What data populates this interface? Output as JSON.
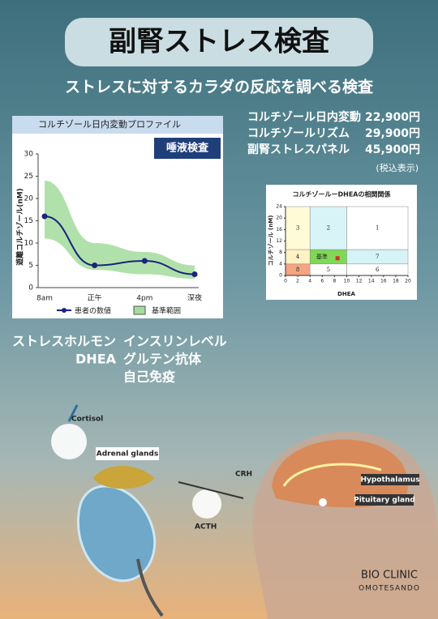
{
  "header": {
    "title": "副腎ストレス検査",
    "subtitle": "ストレスに対するカラダの反応を調べる検査"
  },
  "prices": {
    "items": [
      {
        "name": "コルチゾール日内変動",
        "price": "22,900円"
      },
      {
        "name": "コルチゾールリズム",
        "price": "29,900円"
      },
      {
        "name": "副腎ストレスパネル",
        "price": "45,900円"
      }
    ],
    "note": "(税込表示)"
  },
  "tests": {
    "left": [
      "ストレスホルモン",
      "DHEA"
    ],
    "right": [
      "インスリンレベル",
      "グルテン抗体",
      "自己免疫"
    ]
  },
  "diagram": {
    "cortisol": "Cortisol",
    "adrenal": "Adrenal glands",
    "crh": "CRH",
    "acth": "ACTH",
    "hypothalamus": "Hypothalamus",
    "pituitary": "Pituitary gland"
  },
  "logo": {
    "name": "BIO CLINIC",
    "location": "OMOTESANDO"
  },
  "chart_data": [
    {
      "type": "line",
      "title": "コルチゾール日内変動プロファイル",
      "badge": "唾液検査",
      "y_label": "遊離コルチゾール(nM)",
      "categories": [
        "8am",
        "正午",
        "4pm",
        "深夜"
      ],
      "ylim": [
        0,
        30
      ],
      "yticks": [
        0,
        5,
        10,
        15,
        20,
        25,
        30
      ],
      "series": [
        {
          "name": "患者の数値",
          "color": "#1a237e",
          "values": [
            16,
            5,
            6,
            3
          ]
        },
        {
          "name": "基準範囲",
          "color": "#a3dc9b",
          "values": [
            24,
            10,
            8,
            5
          ],
          "lower": [
            11,
            4,
            3,
            2
          ]
        }
      ]
    },
    {
      "type": "scatter",
      "title": "コルチゾールーDHEAの相関関係",
      "x_label": "DHEA",
      "y_label": "コルチゾール (nM)",
      "xlim": [
        0,
        20
      ],
      "xticks": [
        0,
        2,
        4,
        6,
        8,
        10,
        12,
        14,
        16,
        18,
        20
      ],
      "ylim": [
        0,
        24
      ],
      "yticks": [
        0,
        4,
        8,
        12,
        16,
        20,
        24
      ],
      "zones": [
        {
          "label": "3",
          "x": [
            0,
            4
          ],
          "y": [
            9,
            24
          ],
          "color": "#fffbd6"
        },
        {
          "label": "2",
          "x": [
            4,
            10
          ],
          "y": [
            9,
            24
          ],
          "color": "#d9f4f7"
        },
        {
          "label": "1",
          "x": [
            10,
            20
          ],
          "y": [
            9,
            24
          ],
          "color": "#ffffff"
        },
        {
          "label": "4",
          "x": [
            0,
            4
          ],
          "y": [
            4,
            9
          ],
          "color": "#fff3c4"
        },
        {
          "label": "基準",
          "x": [
            4,
            10
          ],
          "y": [
            4,
            9
          ],
          "color": "#7ed957"
        },
        {
          "label": "7",
          "x": [
            10,
            20
          ],
          "y": [
            4,
            9
          ],
          "color": "#d6f3f7"
        },
        {
          "label": "8",
          "x": [
            0,
            4
          ],
          "y": [
            0,
            4
          ],
          "color": "#f4a582"
        },
        {
          "label": "5",
          "x": [
            4,
            10
          ],
          "y": [
            0,
            4
          ],
          "color": "#ffffff"
        },
        {
          "label": "6",
          "x": [
            10,
            20
          ],
          "y": [
            0,
            4
          ],
          "color": "#ffffff"
        }
      ],
      "points": {
        "x": [
          8.5
        ],
        "y": [
          6
        ],
        "color": "#d32f2f"
      }
    }
  ]
}
